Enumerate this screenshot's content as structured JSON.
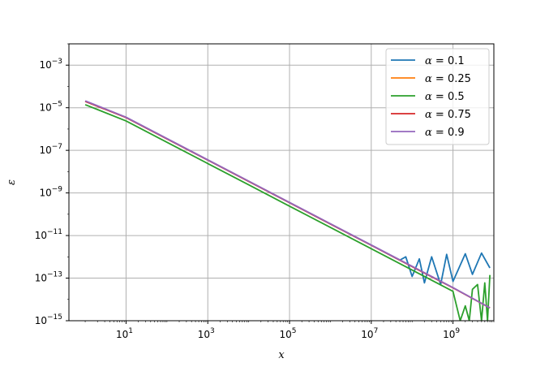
{
  "chart_data": {
    "type": "line",
    "xlabel": "x",
    "ylabel": "ε",
    "xscale": "log",
    "yscale": "log",
    "xlim": [
      0.4,
      10000000000.0
    ],
    "ylim": [
      1e-15,
      0.01
    ],
    "grid": true,
    "legend_position": "top-right",
    "x_ticks": [
      {
        "value": 10,
        "label": "10",
        "exp": "1"
      },
      {
        "value": 1000,
        "label": "10",
        "exp": "3"
      },
      {
        "value": 100000,
        "label": "10",
        "exp": "5"
      },
      {
        "value": 10000000,
        "label": "10",
        "exp": "7"
      },
      {
        "value": 1000000000,
        "label": "10",
        "exp": "9"
      }
    ],
    "y_ticks": [
      {
        "value": 1e-15,
        "label": "10",
        "exp": "−15"
      },
      {
        "value": 1e-13,
        "label": "10",
        "exp": "−13"
      },
      {
        "value": 1e-11,
        "label": "10",
        "exp": "−11"
      },
      {
        "value": 1e-09,
        "label": "10",
        "exp": "−9"
      },
      {
        "value": 1e-07,
        "label": "10",
        "exp": "−7"
      },
      {
        "value": 1e-05,
        "label": "10",
        "exp": "−5"
      },
      {
        "value": 0.001,
        "label": "10",
        "exp": "−3"
      }
    ],
    "series": [
      {
        "name": "α = 0.1",
        "alpha_label": "α",
        "value_label": " = 0.1",
        "color": "#1f77b4",
        "x": [
          1,
          10,
          100,
          1000,
          10000,
          100000,
          1000000,
          10000000,
          50000000,
          70000000,
          100000000,
          150000000,
          200000000,
          300000000,
          500000000,
          700000000,
          1000000000,
          2000000000,
          3000000000,
          5000000000,
          8000000000
        ],
        "y": [
          2e-05,
          3.5e-06,
          3.5e-07,
          3.5e-08,
          3.5e-09,
          3.5e-10,
          3.5e-11,
          3.5e-12,
          7e-13,
          1e-12,
          1.2e-13,
          8e-13,
          6e-14,
          1e-12,
          5e-14,
          1.3e-12,
          7e-14,
          1.4e-12,
          1.5e-13,
          1.5e-12,
          3e-13
        ]
      },
      {
        "name": "α = 0.25",
        "alpha_label": "α",
        "value_label": " = 0.25",
        "color": "#ff7f0e",
        "x": [
          1,
          10,
          100,
          1000,
          10000,
          100000,
          1000000,
          10000000,
          100000000,
          1000000000,
          8000000000
        ],
        "y": [
          2e-05,
          3.5e-06,
          3.5e-07,
          3.5e-08,
          3.5e-09,
          3.5e-10,
          3.5e-11,
          3.5e-12,
          3.5e-13,
          3.5e-14,
          4e-15
        ]
      },
      {
        "name": "α = 0.5",
        "alpha_label": "α",
        "value_label": " = 0.5",
        "color": "#2ca02c",
        "x": [
          1,
          10,
          100,
          1000,
          10000,
          100000,
          1000000,
          10000000,
          100000000,
          1000000000,
          1500000000,
          2000000000,
          2500000000,
          3000000000,
          4000000000,
          5000000000,
          6000000000,
          7000000000,
          8000000000
        ],
        "y": [
          1.4e-05,
          2.4e-06,
          2.4e-07,
          2.4e-08,
          2.4e-09,
          2.4e-10,
          2.4e-11,
          2.4e-12,
          2.4e-13,
          2.4e-14,
          1e-15,
          5e-15,
          1e-15,
          3e-14,
          5e-14,
          1e-15,
          6e-14,
          1e-15,
          1.4e-13
        ]
      },
      {
        "name": "α = 0.75",
        "alpha_label": "α",
        "value_label": " = 0.75",
        "color": "#d62728",
        "x": [
          1,
          10,
          100,
          1000,
          10000,
          100000,
          1000000,
          10000000,
          100000000,
          1000000000,
          8000000000
        ],
        "y": [
          2e-05,
          3.5e-06,
          3.5e-07,
          3.5e-08,
          3.5e-09,
          3.5e-10,
          3.5e-11,
          3.5e-12,
          3.5e-13,
          3.5e-14,
          4e-15
        ]
      },
      {
        "name": "α = 0.9",
        "alpha_label": "α",
        "value_label": " = 0.9",
        "color": "#9467bd",
        "x": [
          1,
          10,
          100,
          1000,
          10000,
          100000,
          1000000,
          10000000,
          100000000,
          1000000000,
          8000000000
        ],
        "y": [
          2.1e-05,
          3.6e-06,
          3.6e-07,
          3.6e-08,
          3.6e-09,
          3.6e-10,
          3.6e-11,
          3.6e-12,
          3.6e-13,
          3.6e-14,
          4e-15
        ]
      }
    ]
  }
}
